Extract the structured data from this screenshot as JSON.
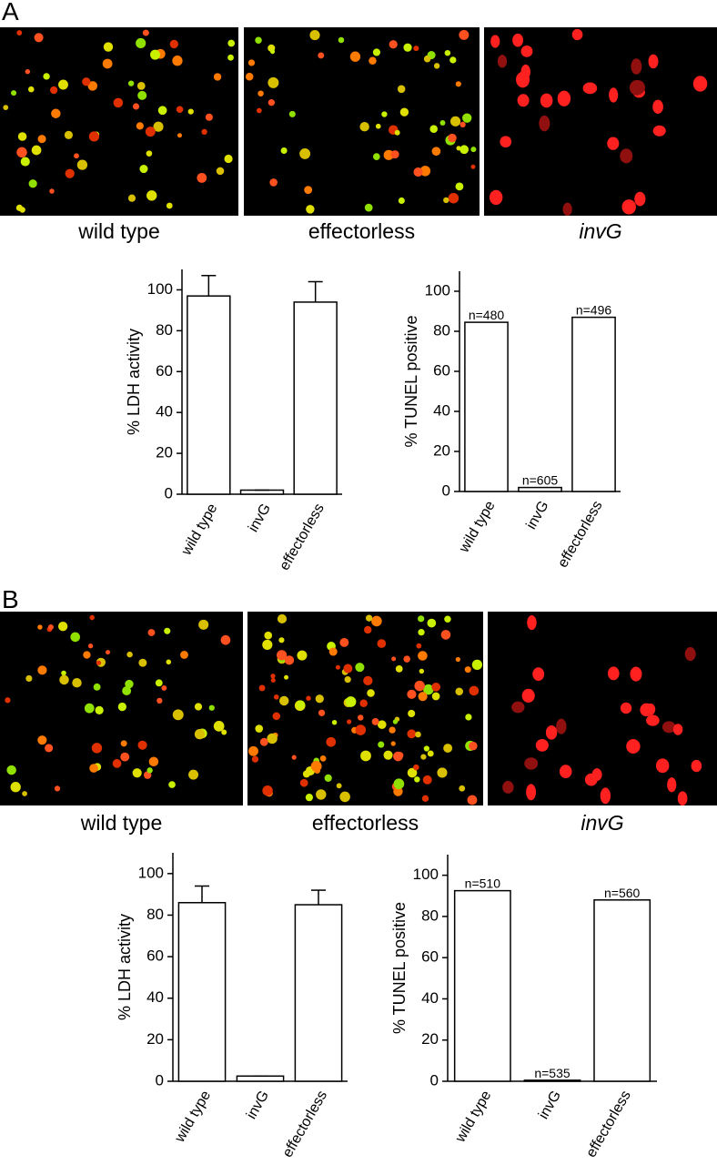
{
  "panels": [
    {
      "label": "A",
      "images": [
        {
          "caption": "wild type"
        },
        {
          "caption": "effectorless"
        },
        {
          "caption": "invG"
        }
      ]
    },
    {
      "label": "B",
      "images": [
        {
          "caption": "wild type"
        },
        {
          "caption": "effectorless"
        },
        {
          "caption": "invG"
        }
      ]
    }
  ],
  "chart_data": [
    {
      "type": "bar",
      "ylabel": "% LDH activity",
      "categories": [
        "wild type",
        "invG",
        "effectorless"
      ],
      "values": [
        97,
        2,
        94
      ],
      "errors": [
        10,
        0,
        10
      ],
      "color": "#ffffff",
      "ylim": [
        0,
        110
      ],
      "yticks": [
        0,
        20,
        40,
        60,
        80,
        100
      ]
    },
    {
      "type": "bar",
      "ylabel": "% TUNEL positive",
      "categories": [
        "wild type",
        "invG",
        "effectorless"
      ],
      "values": [
        84.5,
        2,
        87
      ],
      "annotations": [
        "n=480",
        "n=605",
        "n=496"
      ],
      "color": "#ffffff",
      "ylim": [
        0,
        110
      ],
      "yticks": [
        0,
        20,
        40,
        60,
        80,
        100
      ]
    },
    {
      "type": "bar",
      "ylabel": "% LDH activity",
      "categories": [
        "wild type",
        "invG",
        "effectorless"
      ],
      "values": [
        86,
        2.5,
        85
      ],
      "errors": [
        8,
        0,
        7
      ],
      "color": "#ffffff",
      "ylim": [
        0,
        110
      ],
      "yticks": [
        0,
        20,
        40,
        60,
        80,
        100
      ]
    },
    {
      "type": "bar",
      "ylabel": "% TUNEL positive",
      "categories": [
        "wild type",
        "invG",
        "effectorless"
      ],
      "values": [
        92.5,
        0.5,
        88
      ],
      "annotations": [
        "n=510",
        "n=535",
        "n=560"
      ],
      "color": "#ffffff",
      "ylim": [
        0,
        110
      ],
      "yticks": [
        0,
        20,
        40,
        60,
        80,
        100
      ]
    }
  ]
}
